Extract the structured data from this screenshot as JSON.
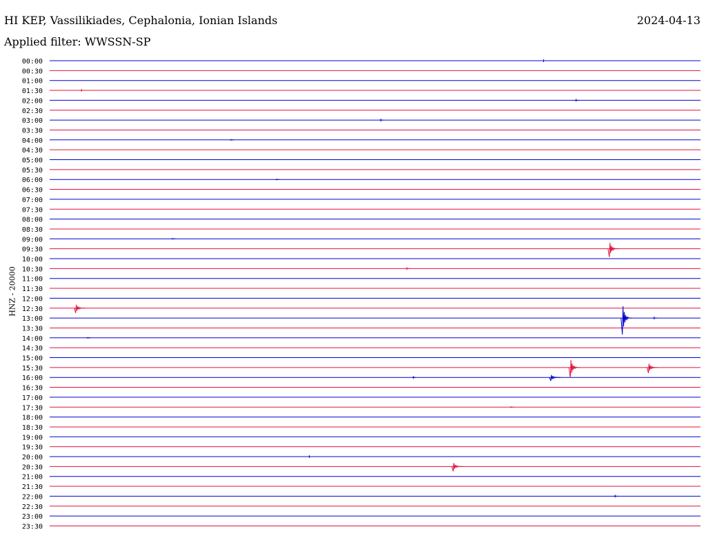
{
  "header": {
    "station": "HI KEP, Vassilikiades, Cephalonia, Ionian Islands",
    "date": "2024-04-13",
    "filter": "Applied filter: WWSSN-SP"
  },
  "colors": {
    "even_trace": "#0000cc",
    "odd_trace": "#e0103c",
    "label": "#000000"
  },
  "chart_data": {
    "type": "line",
    "title": "HI KEP, Vassilikiades, Cephalonia, Ionian Islands",
    "ylabel": "HNZ - 20000",
    "xlabel": "",
    "rows": [
      "00:00",
      "00:30",
      "01:00",
      "01:30",
      "02:00",
      "02:30",
      "03:00",
      "03:30",
      "04:00",
      "04:30",
      "05:00",
      "05:30",
      "06:00",
      "06:30",
      "07:00",
      "07:30",
      "08:00",
      "08:30",
      "09:00",
      "09:30",
      "10:00",
      "10:30",
      "11:00",
      "11:30",
      "12:00",
      "12:30",
      "13:00",
      "13:30",
      "14:00",
      "14:30",
      "15:00",
      "15:30",
      "16:00",
      "16:30",
      "17:00",
      "17:30",
      "18:00",
      "18:30",
      "19:00",
      "19:30",
      "20:00",
      "20:30",
      "21:00",
      "21:30",
      "22:00",
      "22:30",
      "23:00",
      "23:30"
    ],
    "row_minutes": 30,
    "events": [
      {
        "row": 0,
        "t": 0.76,
        "amp": 2
      },
      {
        "row": 3,
        "t": 0.05,
        "amp": 2
      },
      {
        "row": 4,
        "t": 0.81,
        "amp": 2
      },
      {
        "row": 6,
        "t": 0.51,
        "amp": 2
      },
      {
        "row": 8,
        "t": 0.28,
        "amp": 1
      },
      {
        "row": 12,
        "t": 0.35,
        "amp": 1
      },
      {
        "row": 18,
        "t": 0.19,
        "amp": 1
      },
      {
        "row": 19,
        "t": 0.86,
        "amp": 12
      },
      {
        "row": 21,
        "t": 0.55,
        "amp": 2
      },
      {
        "row": 25,
        "t": 0.04,
        "amp": 7
      },
      {
        "row": 26,
        "t": 0.88,
        "amp": 24
      },
      {
        "row": 26,
        "t": 0.93,
        "amp": 2
      },
      {
        "row": 28,
        "t": 0.06,
        "amp": 1
      },
      {
        "row": 31,
        "t": 0.8,
        "amp": 15
      },
      {
        "row": 31,
        "t": 0.92,
        "amp": 8
      },
      {
        "row": 32,
        "t": 0.56,
        "amp": 2
      },
      {
        "row": 32,
        "t": 0.77,
        "amp": 5
      },
      {
        "row": 35,
        "t": 0.71,
        "amp": 1
      },
      {
        "row": 40,
        "t": 0.4,
        "amp": 2
      },
      {
        "row": 41,
        "t": 0.62,
        "amp": 7
      },
      {
        "row": 44,
        "t": 0.87,
        "amp": 2
      }
    ]
  }
}
